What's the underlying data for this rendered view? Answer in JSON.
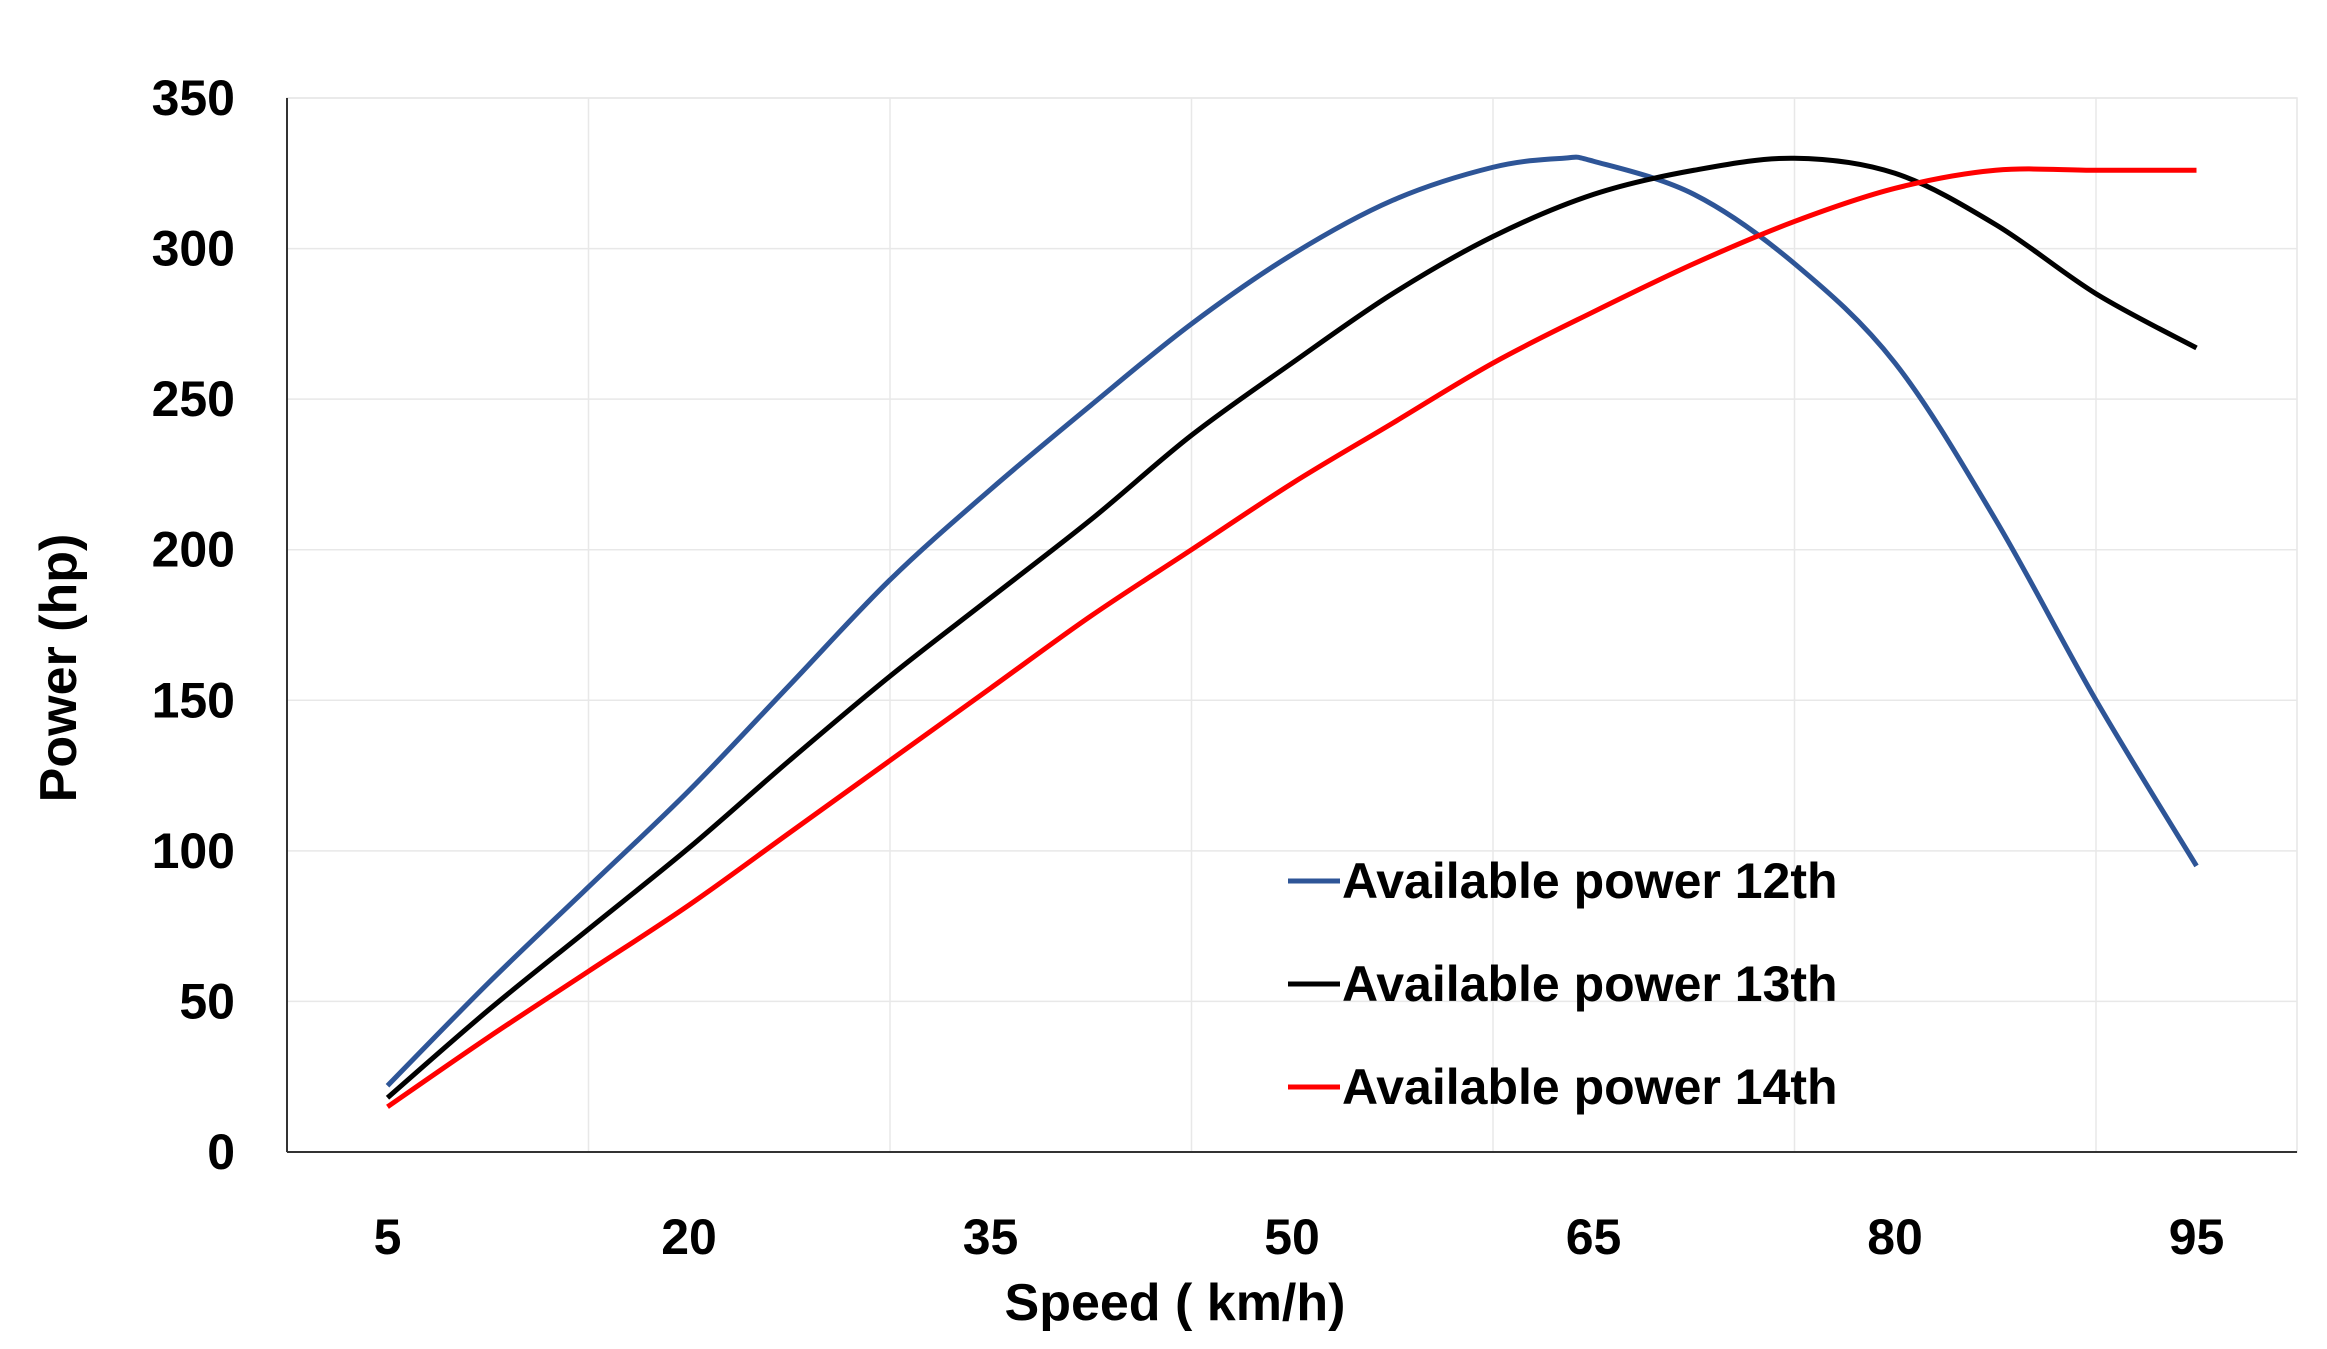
{
  "chart_data": {
    "type": "line",
    "title": "",
    "xlabel": "Speed ( km/h)",
    "ylabel": "Power (hp)",
    "xlim": [
      0,
      100
    ],
    "ylim": [
      0,
      350
    ],
    "x_ticks": [
      5,
      20,
      35,
      50,
      65,
      80,
      95
    ],
    "x_tick_labels": [
      "5",
      "20",
      "35",
      "50",
      "65",
      "80",
      "95"
    ],
    "y_ticks": [
      0,
      50,
      100,
      150,
      200,
      250,
      300,
      350
    ],
    "y_tick_labels": [
      "0",
      "50",
      "100",
      "150",
      "200",
      "250",
      "300",
      "350"
    ],
    "x_gridlines": [
      15,
      30,
      45,
      60,
      75,
      90
    ],
    "grid": true,
    "legend_position": "bottom-right",
    "series": [
      {
        "name": "Available power 12th",
        "color": "#2E5597",
        "x": [
          5,
          10,
          15,
          20,
          25,
          30,
          35,
          40,
          45,
          50,
          55,
          60,
          63.5,
          65,
          70,
          75,
          80,
          85,
          90,
          95
        ],
        "y": [
          22,
          56,
          88,
          120,
          155,
          190,
          220,
          248,
          275,
          298,
          316,
          327,
          330,
          329,
          318,
          295,
          262,
          210,
          150,
          95
        ]
      },
      {
        "name": "Available power 13th",
        "color": "#000000",
        "x": [
          5,
          10,
          15,
          20,
          25,
          30,
          35,
          40,
          45,
          50,
          55,
          60,
          65,
          70,
          75,
          80,
          85,
          90,
          95
        ],
        "y": [
          18,
          47,
          74,
          101,
          130,
          158,
          184,
          210,
          238,
          262,
          285,
          304,
          318,
          326,
          330,
          325,
          308,
          285,
          267
        ]
      },
      {
        "name": "Available power 14th",
        "color": "#FF0000",
        "x": [
          5,
          10,
          15,
          20,
          25,
          30,
          35,
          40,
          45,
          50,
          55,
          60,
          65,
          70,
          75,
          80,
          85,
          90,
          95
        ],
        "y": [
          15,
          38,
          60,
          82,
          106,
          130,
          154,
          178,
          200,
          222,
          242,
          262,
          279,
          295,
          309,
          320,
          326,
          326,
          326
        ]
      }
    ]
  }
}
